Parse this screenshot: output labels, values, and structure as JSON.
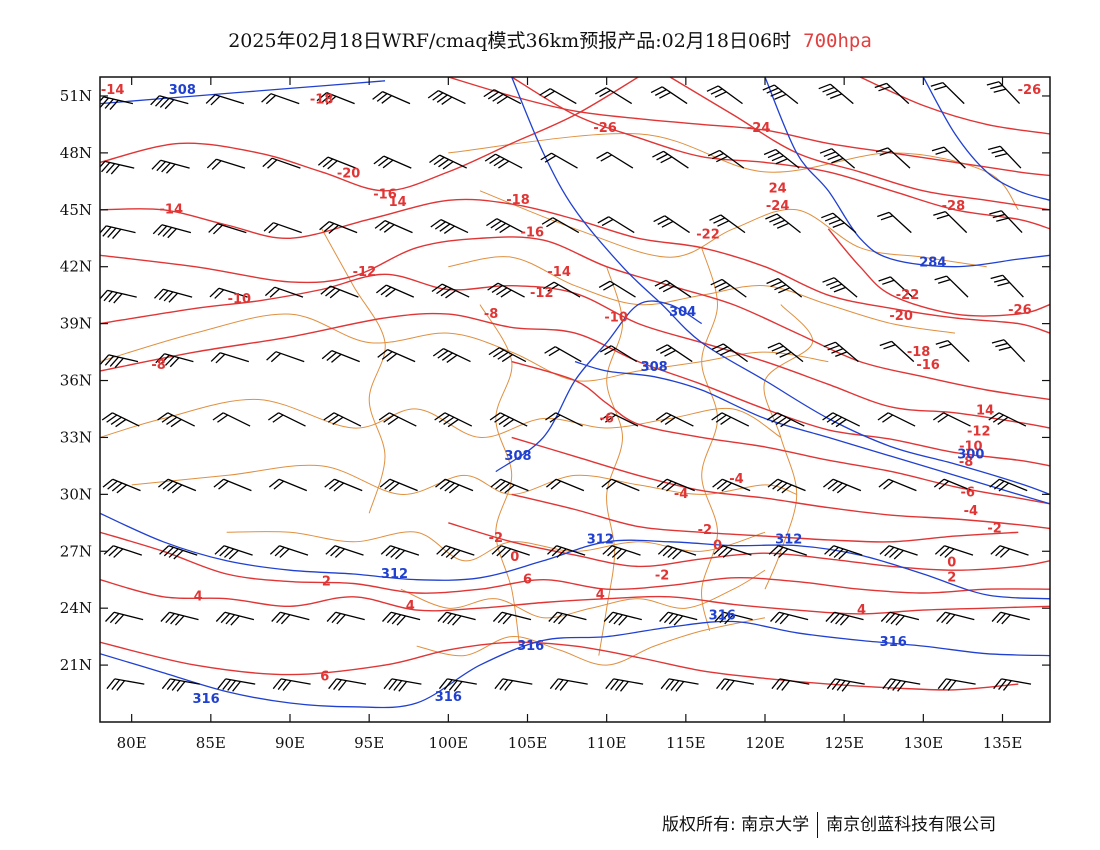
{
  "title": {
    "text": "2025年02月18日WRF/cmaq模式36km预报产品:02月18日06时",
    "level": "700hpa"
  },
  "axes": {
    "lon_range": [
      78,
      138
    ],
    "lat_range": [
      18,
      52
    ],
    "x_ticks": [
      "80E",
      "85E",
      "90E",
      "95E",
      "100E",
      "105E",
      "110E",
      "115E",
      "120E",
      "125E",
      "130E",
      "135E"
    ],
    "x_tick_values": [
      80,
      85,
      90,
      95,
      100,
      105,
      110,
      115,
      120,
      125,
      130,
      135
    ],
    "y_ticks": [
      "51N",
      "48N",
      "45N",
      "42N",
      "39N",
      "36N",
      "33N",
      "30N",
      "27N",
      "24N",
      "21N"
    ],
    "y_tick_values": [
      51,
      48,
      45,
      42,
      39,
      36,
      33,
      30,
      27,
      24,
      21
    ]
  },
  "colors": {
    "temperature": "#e03535",
    "height": "#2040d0",
    "border": "#e09040",
    "wind": "#000000"
  },
  "temperature_labels": [
    {
      "text": "-14",
      "lon": 78.8,
      "lat": 51.1
    },
    {
      "text": "-18",
      "lon": 92.0,
      "lat": 50.6
    },
    {
      "text": "-20",
      "lon": 93.7,
      "lat": 46.7
    },
    {
      "text": "-16",
      "lon": 96.0,
      "lat": 45.6
    },
    {
      "text": "14",
      "lon": 96.8,
      "lat": 45.2
    },
    {
      "text": "-14",
      "lon": 82.5,
      "lat": 44.8
    },
    {
      "text": "-12",
      "lon": 94.7,
      "lat": 41.5
    },
    {
      "text": "-10",
      "lon": 86.8,
      "lat": 40.1
    },
    {
      "text": "-8",
      "lon": 81.7,
      "lat": 36.6
    },
    {
      "text": "-18",
      "lon": 104.4,
      "lat": 45.3
    },
    {
      "text": "-16",
      "lon": 105.3,
      "lat": 43.6
    },
    {
      "text": "-14",
      "lon": 107.0,
      "lat": 41.5
    },
    {
      "text": "-12",
      "lon": 105.9,
      "lat": 40.4
    },
    {
      "text": "-10",
      "lon": 110.6,
      "lat": 39.1
    },
    {
      "text": "-8",
      "lon": 102.7,
      "lat": 39.3
    },
    {
      "text": "-6",
      "lon": 110.0,
      "lat": 33.8
    },
    {
      "text": "-4",
      "lon": 114.7,
      "lat": 29.8
    },
    {
      "text": "-2",
      "lon": 116.2,
      "lat": 27.9
    },
    {
      "text": "0",
      "lon": 117.0,
      "lat": 27.1
    },
    {
      "text": "-2",
      "lon": 113.5,
      "lat": 25.5
    },
    {
      "text": "2",
      "lon": 92.3,
      "lat": 25.2
    },
    {
      "text": "4",
      "lon": 84.2,
      "lat": 24.4
    },
    {
      "text": "4",
      "lon": 97.6,
      "lat": 23.9
    },
    {
      "text": "6",
      "lon": 105.0,
      "lat": 25.3
    },
    {
      "text": "6",
      "lon": 92.2,
      "lat": 20.2
    },
    {
      "text": "-2",
      "lon": 103.0,
      "lat": 27.5
    },
    {
      "text": "0",
      "lon": 104.2,
      "lat": 26.5
    },
    {
      "text": "-26",
      "lon": 109.9,
      "lat": 49.1
    },
    {
      "text": "-24",
      "lon": 119.6,
      "lat": 49.1
    },
    {
      "text": "24",
      "lon": 120.8,
      "lat": 45.9
    },
    {
      "text": "-24",
      "lon": 120.8,
      "lat": 45.0
    },
    {
      "text": "-22",
      "lon": 116.4,
      "lat": 43.5
    },
    {
      "text": "-22",
      "lon": 129.0,
      "lat": 40.3
    },
    {
      "text": "-20",
      "lon": 128.6,
      "lat": 39.2
    },
    {
      "text": "-18",
      "lon": 129.7,
      "lat": 37.3
    },
    {
      "text": "-16",
      "lon": 130.3,
      "lat": 36.6
    },
    {
      "text": "14",
      "lon": 133.9,
      "lat": 34.2
    },
    {
      "text": "-12",
      "lon": 133.5,
      "lat": 33.1
    },
    {
      "text": "-10",
      "lon": 133.0,
      "lat": 32.3
    },
    {
      "text": "-8",
      "lon": 132.7,
      "lat": 31.5
    },
    {
      "text": "-6",
      "lon": 132.8,
      "lat": 29.9
    },
    {
      "text": "-4",
      "lon": 133.0,
      "lat": 28.9
    },
    {
      "text": "-2",
      "lon": 134.5,
      "lat": 28.0
    },
    {
      "text": "0",
      "lon": 131.8,
      "lat": 26.2
    },
    {
      "text": "2",
      "lon": 131.8,
      "lat": 25.4
    },
    {
      "text": "4",
      "lon": 126.1,
      "lat": 23.7
    },
    {
      "text": "-26",
      "lon": 136.7,
      "lat": 51.1
    },
    {
      "text": "-28",
      "lon": 131.9,
      "lat": 45.0
    },
    {
      "text": "-26",
      "lon": 136.1,
      "lat": 39.5
    },
    {
      "text": "4",
      "lon": 109.6,
      "lat": 24.5
    },
    {
      "text": "-4",
      "lon": 118.2,
      "lat": 30.6
    }
  ],
  "height_labels": [
    {
      "text": "308",
      "lon": 83.2,
      "lat": 51.1
    },
    {
      "text": "308",
      "lon": 104.4,
      "lat": 31.8
    },
    {
      "text": "308",
      "lon": 113.0,
      "lat": 36.5
    },
    {
      "text": "304",
      "lon": 114.8,
      "lat": 39.4
    },
    {
      "text": "284",
      "lon": 130.6,
      "lat": 42.0
    },
    {
      "text": "300",
      "lon": 133.0,
      "lat": 31.9
    },
    {
      "text": "312",
      "lon": 96.6,
      "lat": 25.6
    },
    {
      "text": "312",
      "lon": 109.6,
      "lat": 27.4
    },
    {
      "text": "312",
      "lon": 121.5,
      "lat": 27.4
    },
    {
      "text": "316",
      "lon": 117.3,
      "lat": 23.4
    },
    {
      "text": "316",
      "lon": 105.2,
      "lat": 21.8
    },
    {
      "text": "316",
      "lon": 128.1,
      "lat": 22.0
    },
    {
      "text": "316",
      "lon": 100.0,
      "lat": 19.1
    },
    {
      "text": "316",
      "lon": 84.7,
      "lat": 19.0
    }
  ],
  "credit": {
    "left": "版权所有: 南京大学",
    "right": "南京创蓝科技有限公司"
  }
}
